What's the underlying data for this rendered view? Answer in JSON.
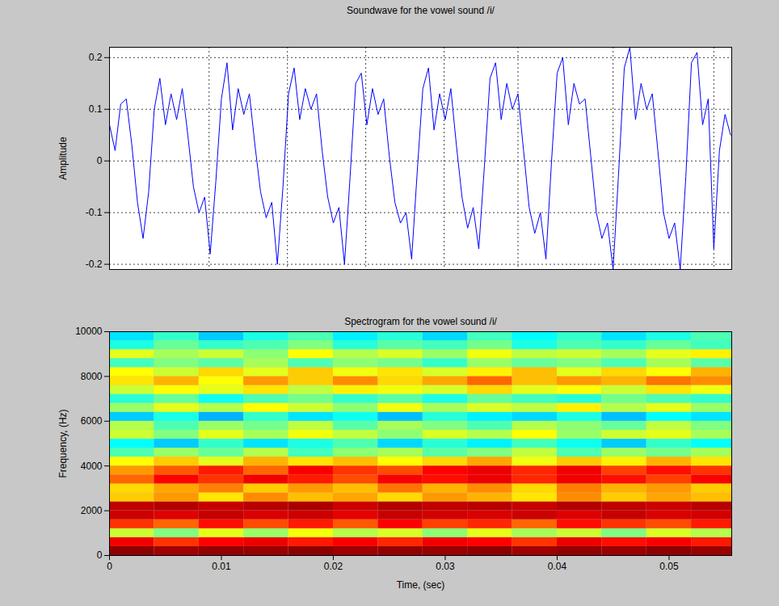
{
  "chart_data": [
    {
      "type": "line",
      "title": "Soundwave for the vowel sound /i/",
      "y_label": "Amplitude",
      "color": "#0000ff",
      "xlim": [
        0,
        0.0556
      ],
      "ylim": [
        -0.21,
        0.22
      ],
      "xticks": [
        0.0089,
        0.0159,
        0.0229,
        0.0299,
        0.0365,
        0.045,
        0.054
      ],
      "yticks": [
        -0.2,
        -0.1,
        0,
        0.1,
        0.2
      ],
      "grid": true,
      "tick_labels": "y",
      "x": [
        0,
        0.0005,
        0.001,
        0.0015,
        0.002,
        0.0025,
        0.003,
        0.0035,
        0.004,
        0.0045,
        0.005,
        0.0055,
        0.006,
        0.0065,
        0.007,
        0.0075,
        0.008,
        0.0085,
        0.009,
        0.0095,
        0.01,
        0.0105,
        0.011,
        0.0115,
        0.012,
        0.0125,
        0.013,
        0.0135,
        0.014,
        0.0145,
        0.015,
        0.0155,
        0.016,
        0.0165,
        0.017,
        0.0175,
        0.018,
        0.0185,
        0.019,
        0.0195,
        0.02,
        0.0205,
        0.021,
        0.0215,
        0.022,
        0.0225,
        0.023,
        0.0235,
        0.024,
        0.0245,
        0.025,
        0.0255,
        0.026,
        0.0265,
        0.027,
        0.0275,
        0.028,
        0.0285,
        0.029,
        0.0295,
        0.03,
        0.0305,
        0.031,
        0.0315,
        0.032,
        0.0325,
        0.033,
        0.0335,
        0.034,
        0.0345,
        0.035,
        0.0355,
        0.036,
        0.0365,
        0.037,
        0.0375,
        0.038,
        0.0385,
        0.039,
        0.0395,
        0.04,
        0.0405,
        0.041,
        0.0415,
        0.042,
        0.0425,
        0.043,
        0.0435,
        0.044,
        0.0445,
        0.045,
        0.0455,
        0.046,
        0.0465,
        0.047,
        0.0475,
        0.048,
        0.0485,
        0.049,
        0.0495,
        0.05,
        0.0505,
        0.051,
        0.0515,
        0.052,
        0.0525,
        0.053,
        0.0535,
        0.054,
        0.0545,
        0.055,
        0.0555
      ],
      "values": [
        0.07,
        0.02,
        0.11,
        0.12,
        0.03,
        -0.08,
        -0.15,
        -0.06,
        0.1,
        0.16,
        0.07,
        0.13,
        0.08,
        0.14,
        0.05,
        -0.05,
        -0.1,
        -0.07,
        -0.18,
        -0.04,
        0.12,
        0.19,
        0.06,
        0.14,
        0.09,
        0.13,
        0.03,
        -0.06,
        -0.11,
        -0.08,
        -0.2,
        -0.05,
        0.13,
        0.18,
        0.08,
        0.14,
        0.1,
        0.13,
        0.02,
        -0.07,
        -0.12,
        -0.09,
        -0.2,
        -0.03,
        0.15,
        0.17,
        0.07,
        0.14,
        0.09,
        0.12,
        0.01,
        -0.08,
        -0.12,
        -0.1,
        -0.19,
        -0.02,
        0.14,
        0.18,
        0.06,
        0.13,
        0.08,
        0.14,
        0.03,
        -0.07,
        -0.13,
        -0.09,
        -0.17,
        -0.01,
        0.16,
        0.19,
        0.08,
        0.15,
        0.1,
        0.13,
        0.02,
        -0.09,
        -0.14,
        -0.1,
        -0.19,
        0.0,
        0.17,
        0.2,
        0.07,
        0.15,
        0.11,
        0.12,
        0.01,
        -0.1,
        -0.15,
        -0.12,
        -0.21,
        -0.02,
        0.18,
        0.22,
        0.08,
        0.15,
        0.1,
        0.13,
        0.02,
        -0.1,
        -0.15,
        -0.12,
        -0.21,
        -0.03,
        0.19,
        0.21,
        0.07,
        0.12,
        -0.17,
        0.02,
        0.09,
        0.05
      ]
    },
    {
      "type": "heatmap",
      "title": "Spectrogram for the vowel sound /i/",
      "x_label": "Time, (sec)",
      "y_label": "Frequency, (Hz)",
      "xlim": [
        0,
        0.0556
      ],
      "ylim": [
        0,
        10000
      ],
      "xticks": [
        0,
        0.01,
        0.02,
        0.03,
        0.04,
        0.05
      ],
      "yticks": [
        0,
        2000,
        4000,
        6000,
        8000,
        10000
      ],
      "grid": false,
      "cells": {
        "time_edges": [
          0,
          0.004,
          0.008,
          0.012,
          0.016,
          0.02,
          0.024,
          0.028,
          0.032,
          0.036,
          0.04,
          0.044,
          0.048,
          0.052,
          0.056
        ],
        "frequency_edges": [
          0,
          400,
          800,
          1200,
          1600,
          2000,
          2400,
          2800,
          3200,
          3600,
          4000,
          4400,
          4800,
          5200,
          5600,
          6000,
          6400,
          6800,
          7200,
          7600,
          8000,
          8400,
          8800,
          9200,
          9600,
          10000
        ],
        "clim": [
          0,
          10
        ],
        "values": [
          [
            9.8,
            9.5,
            9.7,
            9.6,
            9.8,
            9.5,
            9.7,
            9.6,
            9.8,
            9.5,
            9.7,
            9.6,
            9.8,
            9.6
          ],
          [
            8.2,
            7.6,
            8.0,
            8.3,
            7.8,
            8.1,
            7.7,
            8.2,
            8.0,
            7.6,
            8.3,
            7.9,
            8.1,
            7.8
          ],
          [
            5.6,
            5.0,
            5.8,
            5.2,
            5.9,
            5.4,
            5.7,
            5.1,
            5.8,
            5.3,
            5.6,
            5.0,
            5.7,
            5.4
          ],
          [
            7.6,
            7.2,
            7.9,
            7.4,
            7.8,
            7.3,
            8.0,
            7.5,
            7.7,
            7.2,
            7.9,
            7.6,
            7.4,
            7.8
          ],
          [
            8.8,
            8.5,
            8.9,
            8.6,
            8.8,
            8.4,
            8.9,
            8.7,
            8.6,
            8.8,
            8.5,
            8.9,
            8.6,
            8.7
          ],
          [
            9.0,
            9.2,
            8.9,
            9.1,
            9.3,
            8.8,
            9.2,
            9.0,
            9.1,
            8.9,
            9.2,
            9.0,
            8.8,
            9.1
          ],
          [
            6.4,
            6.8,
            6.2,
            6.9,
            6.5,
            6.7,
            6.3,
            6.8,
            6.6,
            6.2,
            6.9,
            6.4,
            6.7,
            6.5
          ],
          [
            6.3,
            6.7,
            7.0,
            6.4,
            6.8,
            6.5,
            7.1,
            6.6,
            6.9,
            6.3,
            7.0,
            6.6,
            6.8,
            6.4
          ],
          [
            7.2,
            8.0,
            7.6,
            8.2,
            7.8,
            7.4,
            8.1,
            7.9,
            8.3,
            7.7,
            8.2,
            7.9,
            7.5,
            8.1
          ],
          [
            6.8,
            7.3,
            7.8,
            7.2,
            8.1,
            7.6,
            7.4,
            8.0,
            8.3,
            7.7,
            8.2,
            7.5,
            7.9,
            7.6
          ],
          [
            6.0,
            6.4,
            5.8,
            6.6,
            6.2,
            6.5,
            6.0,
            6.3,
            6.7,
            5.9,
            6.4,
            6.1,
            6.6,
            6.2
          ],
          [
            4.6,
            5.2,
            4.8,
            5.4,
            4.5,
            5.1,
            5.3,
            4.7,
            5.0,
            5.5,
            4.6,
            5.2,
            4.9,
            5.3
          ],
          [
            4.0,
            3.6,
            4.4,
            3.8,
            4.2,
            4.6,
            3.7,
            4.3,
            3.9,
            4.5,
            4.1,
            3.6,
            4.4,
            4.0
          ],
          [
            5.6,
            5.0,
            5.8,
            5.3,
            5.9,
            5.5,
            5.1,
            5.7,
            5.4,
            6.0,
            5.2,
            5.6,
            5.8,
            5.3
          ],
          [
            5.4,
            4.6,
            5.2,
            4.9,
            5.5,
            4.7,
            5.3,
            5.0,
            4.6,
            5.4,
            5.1,
            4.8,
            5.5,
            5.0
          ],
          [
            3.6,
            4.2,
            3.4,
            4.4,
            3.8,
            4.1,
            3.5,
            4.3,
            3.9,
            3.7,
            4.2,
            3.5,
            4.0,
            3.8
          ],
          [
            5.2,
            5.8,
            5.4,
            6.0,
            5.6,
            5.1,
            5.9,
            5.3,
            5.7,
            5.5,
            6.1,
            5.4,
            5.8,
            5.2
          ],
          [
            4.3,
            4.8,
            4.1,
            4.6,
            4.9,
            4.4,
            4.7,
            4.2,
            4.8,
            4.5,
            4.3,
            4.9,
            4.6,
            4.4
          ],
          [
            5.6,
            6.0,
            5.8,
            6.2,
            5.5,
            6.1,
            5.9,
            5.7,
            6.3,
            5.8,
            6.0,
            5.6,
            6.2,
            5.9
          ],
          [
            6.2,
            6.6,
            6.0,
            6.8,
            6.4,
            6.9,
            6.3,
            6.7,
            7.2,
            6.5,
            6.8,
            6.6,
            7.1,
            6.9
          ],
          [
            6.0,
            5.6,
            6.3,
            5.8,
            6.4,
            5.9,
            6.2,
            5.7,
            6.1,
            6.5,
            5.8,
            6.3,
            6.0,
            6.6
          ],
          [
            4.5,
            5.0,
            4.7,
            5.3,
            4.6,
            5.1,
            4.9,
            4.4,
            5.2,
            4.8,
            5.0,
            4.6,
            5.3,
            4.7
          ],
          [
            5.8,
            5.3,
            5.6,
            5.1,
            6.0,
            5.4,
            5.7,
            5.2,
            5.9,
            5.5,
            5.6,
            5.3,
            5.8,
            6.1
          ],
          [
            4.2,
            4.8,
            4.4,
            4.6,
            5.0,
            4.3,
            4.7,
            4.5,
            4.9,
            4.2,
            4.6,
            4.4,
            4.8,
            4.5
          ],
          [
            3.8,
            4.4,
            3.6,
            4.2,
            4.6,
            3.9,
            4.3,
            3.7,
            4.5,
            4.0,
            4.4,
            3.8,
            4.2,
            4.6
          ]
        ]
      }
    }
  ]
}
